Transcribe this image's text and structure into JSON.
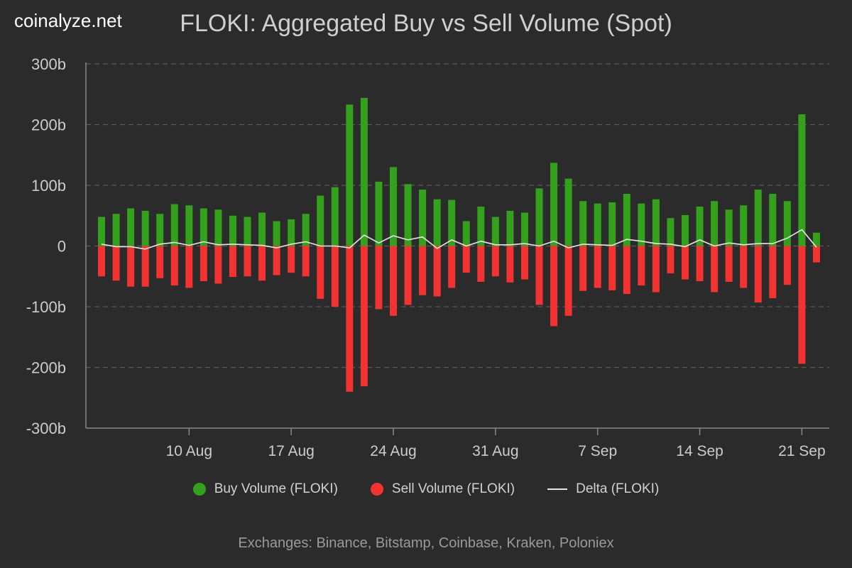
{
  "brand": "coinalyze.net",
  "footer": "Exchanges: Binance, Bitstamp, Coinbase, Kraken, Poloniex",
  "colors": {
    "buy": "#33a11c",
    "sell": "#f33232",
    "delta": "#e6e6e6",
    "grid": "#5a5a5a",
    "axis": "#888888",
    "tick_text": "#cccccc"
  },
  "chart_data": {
    "type": "bar",
    "title": "FLOKI: Aggregated Buy vs Sell Volume (Spot)",
    "x_start_date": "2023-08-04",
    "x_tick_labels": [
      "10 Aug",
      "17 Aug",
      "24 Aug",
      "31 Aug",
      "7 Sep",
      "14 Sep",
      "21 Sep"
    ],
    "x_tick_dates": [
      "2023-08-10",
      "2023-08-17",
      "2023-08-24",
      "2023-08-31",
      "2023-09-07",
      "2023-09-14",
      "2023-09-21"
    ],
    "y_ticks": [
      300,
      200,
      100,
      0,
      -100,
      -200,
      -300
    ],
    "y_tick_labels": [
      "300b",
      "200b",
      "100b",
      "0",
      "-100b",
      "-200b",
      "-300b"
    ],
    "ylim": [
      -300,
      300
    ],
    "unit": "b",
    "grid": true,
    "legend_position": "bottom",
    "series": [
      {
        "name": "Buy Volume (FLOKI)",
        "type": "bar",
        "values": [
          48,
          53,
          62,
          58,
          53,
          69,
          67,
          62,
          60,
          50,
          48,
          55,
          41,
          44,
          53,
          83,
          97,
          233,
          244,
          106,
          130,
          102,
          93,
          77,
          76,
          41,
          65,
          48,
          58,
          55,
          95,
          137,
          111,
          74,
          70,
          72,
          86,
          70,
          77,
          46,
          51,
          65,
          74,
          60,
          67,
          93,
          86,
          74,
          217,
          22
        ]
      },
      {
        "name": "Sell Volume (FLOKI)",
        "type": "bar",
        "values": [
          -50,
          -57,
          -67,
          -67,
          -53,
          -65,
          -69,
          -58,
          -62,
          -51,
          -50,
          -57,
          -48,
          -44,
          -50,
          -87,
          -100,
          -240,
          -231,
          -104,
          -115,
          -97,
          -81,
          -83,
          -69,
          -44,
          -59,
          -50,
          -60,
          -55,
          -97,
          -132,
          -115,
          -74,
          -69,
          -73,
          -79,
          -65,
          -76,
          -45,
          -55,
          -58,
          -76,
          -59,
          -69,
          -93,
          -86,
          -64,
          -194,
          -27
        ]
      },
      {
        "name": "Delta (FLOKI)",
        "type": "line",
        "values": [
          3,
          -1,
          -1,
          -5,
          3,
          6,
          1,
          7,
          2,
          3,
          2,
          1,
          -3,
          3,
          7,
          0,
          0,
          -3,
          18,
          5,
          17,
          10,
          15,
          -4,
          10,
          0,
          8,
          2,
          2,
          4,
          0,
          8,
          -3,
          3,
          2,
          1,
          11,
          8,
          4,
          3,
          -1,
          10,
          0,
          5,
          2,
          4,
          4,
          13,
          27,
          -2
        ]
      }
    ]
  }
}
